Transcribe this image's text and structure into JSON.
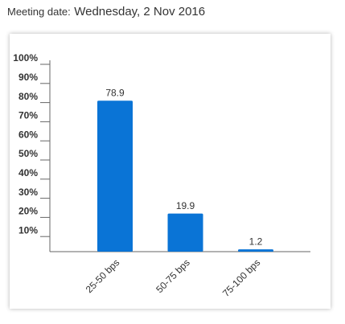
{
  "chart_data": {
    "type": "bar",
    "title_label": "Meeting date:",
    "title": "Wednesday, 2 Nov 2016",
    "categories": [
      "25-50 bps",
      "50-75 bps",
      "75-100 bps"
    ],
    "values": [
      78.9,
      19.9,
      1.2
    ],
    "color": "#0a74d6",
    "ylim": [
      0,
      100
    ],
    "yticks": [
      {
        "value": 10,
        "label": "10%"
      },
      {
        "value": 20,
        "label": "20%"
      },
      {
        "value": 30,
        "label": "30%"
      },
      {
        "value": 40,
        "label": "40%"
      },
      {
        "value": 50,
        "label": "50%"
      },
      {
        "value": 60,
        "label": "60%"
      },
      {
        "value": 70,
        "label": "70%"
      },
      {
        "value": 80,
        "label": "80%"
      },
      {
        "value": 90,
        "label": "90%"
      },
      {
        "value": 100,
        "label": "100%"
      }
    ]
  }
}
